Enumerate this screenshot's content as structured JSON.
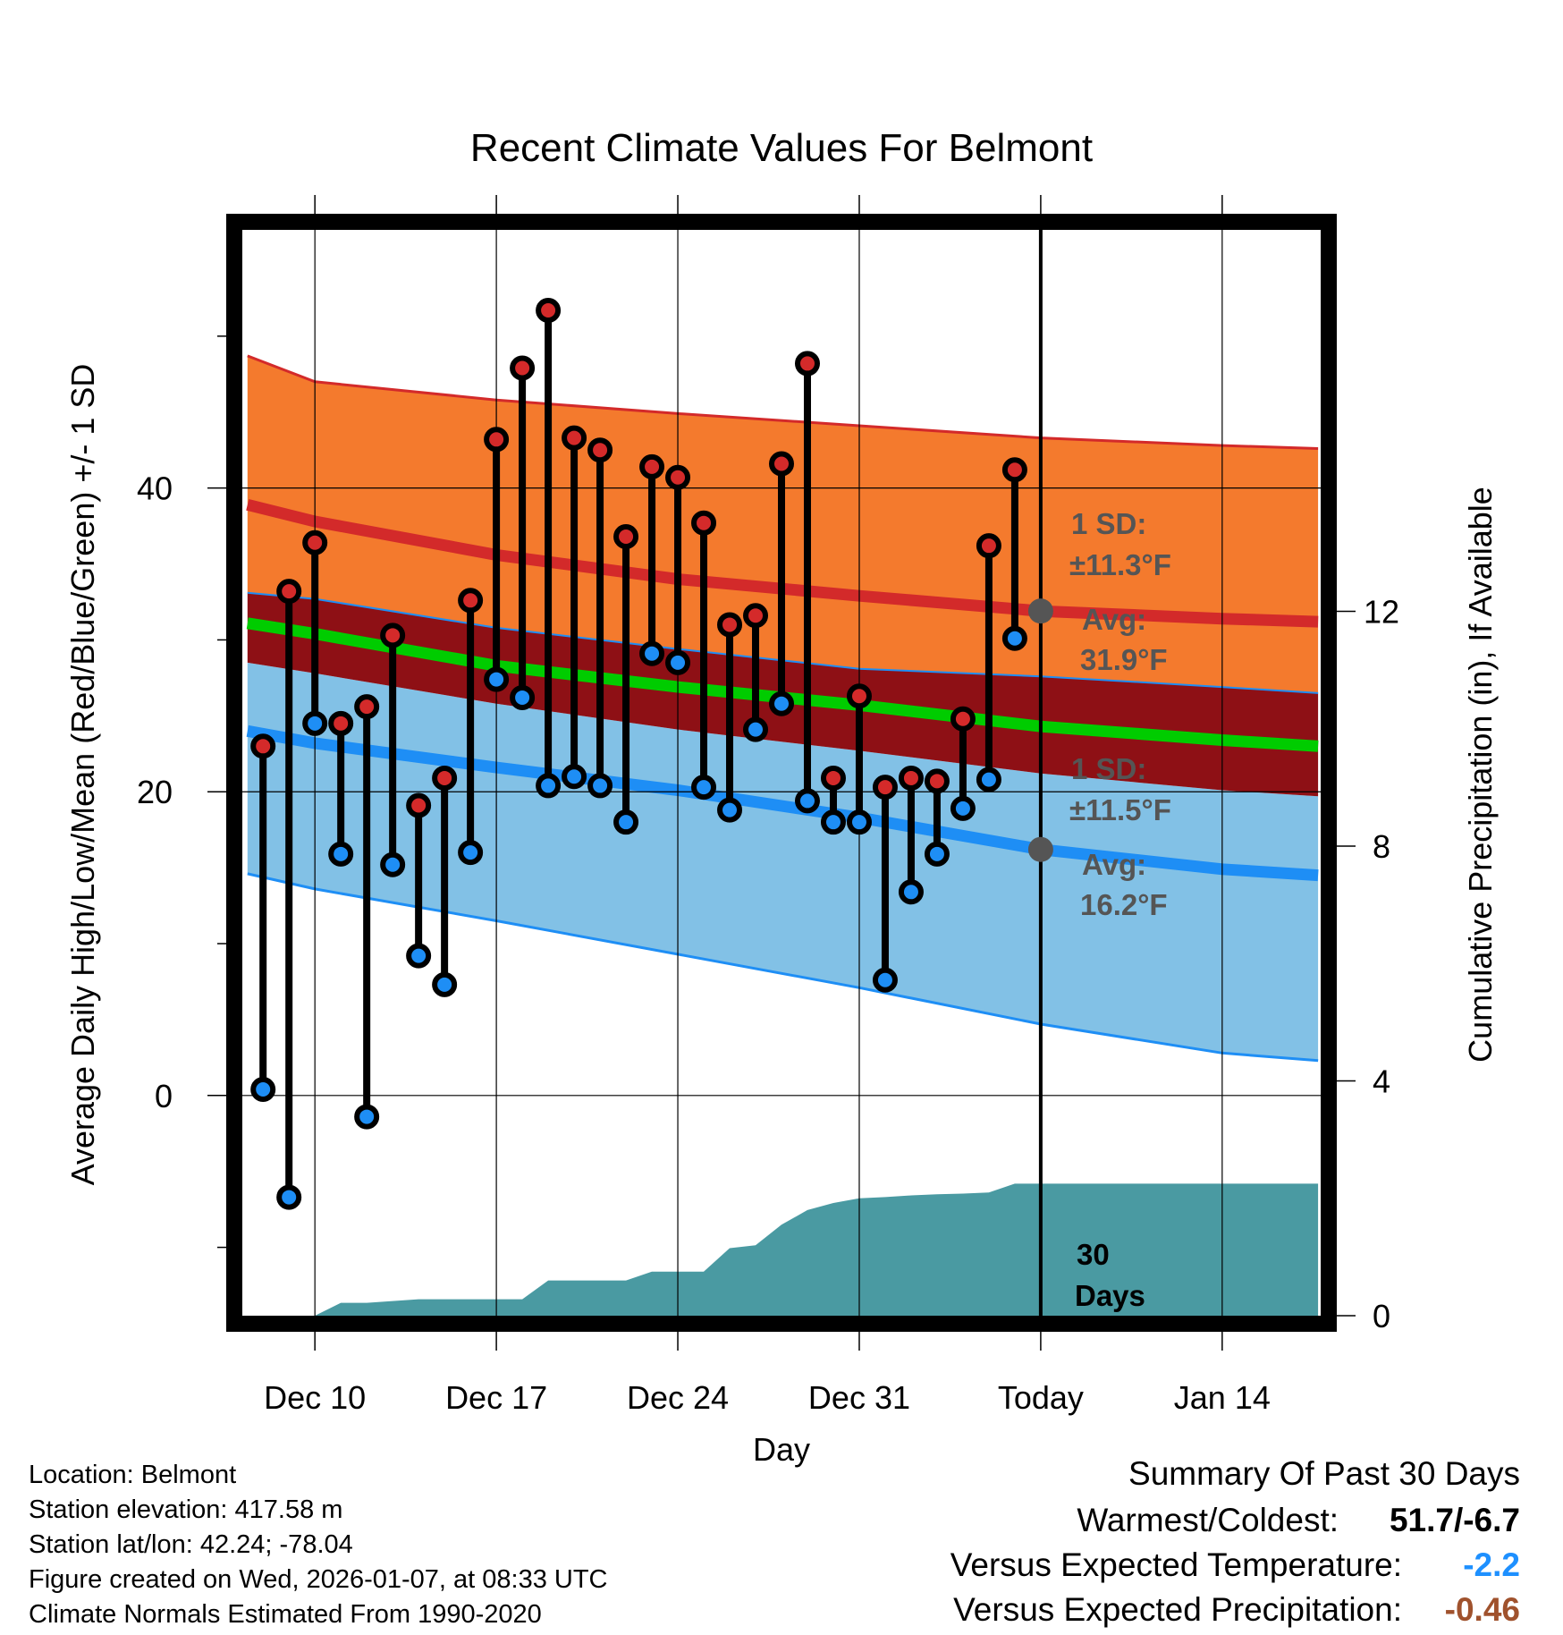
{
  "colors": {
    "orange_band": "#F47A2D",
    "dark_red_band": "#8E1015",
    "blue_band": "#82C1E6",
    "mean_high_line": "#D32A2A",
    "mean_low_line": "#1E8EF5",
    "mean_line": "#00CC00",
    "precip_fill": "#4A9AA2",
    "high_dot": "#D42A2A",
    "low_dot": "#1E8EF5",
    "annot_dot": "#555555",
    "temp_diff": "#1E90FF",
    "precip_diff": "#A0522D"
  },
  "chart_data": {
    "type": "range",
    "title": "Recent Climate Values For Belmont",
    "xlabel": "Day",
    "ylabel": "Average Daily High/Low/Mean (Red/Blue/Green) +/- 1 SD",
    "y2label": "Cumulative Precipitation (in), If Available",
    "xlim": [
      -2.8,
      38.8
    ],
    "ylim": [
      -14.5,
      57
    ],
    "y2lim": [
      0,
      18.5
    ],
    "x_ticks": [
      {
        "x": 0,
        "label": "Dec 10"
      },
      {
        "x": 7,
        "label": "Dec 17"
      },
      {
        "x": 14,
        "label": "Dec 24"
      },
      {
        "x": 21,
        "label": "Dec 31"
      },
      {
        "x": 28,
        "label": "Today"
      },
      {
        "x": 35,
        "label": "Jan 14"
      }
    ],
    "y_ticks": [
      {
        "y": 0,
        "label": "0"
      },
      {
        "y": 20,
        "label": "20"
      },
      {
        "y": 40,
        "label": "40"
      }
    ],
    "y_minor_ticks": [
      -10,
      10,
      30,
      50
    ],
    "y2_ticks": [
      {
        "y": 0,
        "label": "0"
      },
      {
        "y": 4,
        "label": "4"
      },
      {
        "y": 8,
        "label": "8"
      },
      {
        "y": 12,
        "label": "12"
      }
    ],
    "today_x": 28,
    "normals": {
      "x": [
        -2.6,
        0,
        7,
        14,
        21,
        28,
        35,
        38.7
      ],
      "high_plus_sd": [
        48.7,
        47.0,
        45.8,
        44.9,
        44.1,
        43.3,
        42.8,
        42.6
      ],
      "high_mean": [
        38.9,
        37.8,
        35.6,
        34.0,
        32.9,
        31.9,
        31.4,
        31.2
      ],
      "high_minus_sd": [
        33.1,
        32.7,
        30.8,
        29.4,
        28.1,
        27.6,
        26.9,
        26.5
      ],
      "mean": [
        31.1,
        30.4,
        28.3,
        26.9,
        25.7,
        24.3,
        23.4,
        23.0
      ],
      "low_plus_sd": [
        28.5,
        27.8,
        25.8,
        24.1,
        22.7,
        21.2,
        20.1,
        19.7
      ],
      "low_mean": [
        24.0,
        23.2,
        21.6,
        20.1,
        18.3,
        16.2,
        14.9,
        14.5
      ],
      "low_minus_sd": [
        14.6,
        13.6,
        11.5,
        9.3,
        7.1,
        4.7,
        2.8,
        2.3
      ]
    },
    "daily": {
      "x": [
        -2,
        -1,
        0,
        1,
        2,
        3,
        4,
        5,
        6,
        7,
        8,
        9,
        10,
        11,
        12,
        13,
        14,
        15,
        16,
        17,
        18,
        19,
        20,
        21,
        22,
        23,
        24,
        25,
        26,
        27
      ],
      "high": [
        23.0,
        33.2,
        36.4,
        24.5,
        25.6,
        30.3,
        19.1,
        20.9,
        32.6,
        43.2,
        47.9,
        51.7,
        43.3,
        42.5,
        36.8,
        41.4,
        40.7,
        37.7,
        31.0,
        31.6,
        41.6,
        48.2,
        20.9,
        26.3,
        20.3,
        20.9,
        20.7,
        24.8,
        36.2,
        41.2
      ],
      "low": [
        0.4,
        -6.7,
        24.5,
        15.9,
        -1.4,
        15.2,
        9.2,
        7.3,
        16.0,
        27.4,
        26.2,
        20.4,
        21.0,
        20.4,
        18.0,
        29.1,
        28.5,
        20.3,
        18.8,
        24.1,
        25.8,
        19.4,
        18.0,
        18.0,
        7.6,
        13.4,
        15.9,
        18.9,
        20.8,
        30.1
      ]
    },
    "precip": {
      "x": [
        0,
        1,
        2,
        3,
        4,
        5,
        6,
        7,
        8,
        9,
        10,
        11,
        12,
        13,
        14,
        15,
        16,
        17,
        18,
        19,
        20,
        21,
        22,
        23,
        24,
        25,
        26,
        27,
        38.7
      ],
      "cum": [
        0.0,
        0.22,
        0.22,
        0.25,
        0.28,
        0.28,
        0.28,
        0.28,
        0.28,
        0.6,
        0.6,
        0.6,
        0.6,
        0.75,
        0.75,
        0.75,
        1.15,
        1.2,
        1.55,
        1.8,
        1.92,
        2.0,
        2.02,
        2.05,
        2.07,
        2.08,
        2.1,
        2.25,
        2.25
      ]
    },
    "annotations": {
      "high_sd": "1 SD:",
      "high_sd_value": "±11.3°F",
      "high_avg": "Avg:",
      "high_avg_value": "31.9°F",
      "low_sd": "1 SD:",
      "low_sd_value": "±11.5°F",
      "low_avg": "Avg:",
      "low_avg_value": "16.2°F",
      "days_number": "30",
      "days_word": "Days"
    }
  },
  "info": {
    "location": "Location: Belmont",
    "elevation": "Station elevation: 417.58 m",
    "latlon": "Station lat/lon: 42.24; -78.04",
    "created": "Figure created on Wed, 2026-01-07, at 08:33 UTC",
    "normals": "Climate Normals Estimated From 1990-2020"
  },
  "summary": {
    "title": "Summary Of Past 30 Days",
    "warmest_label": "Warmest/Coldest:",
    "warmest_value": "51.7/-6.7",
    "temp_label": "Versus Expected Temperature:",
    "temp_value": "-2.2",
    "precip_label": "Versus Expected Precipitation:",
    "precip_value": "-0.46"
  }
}
